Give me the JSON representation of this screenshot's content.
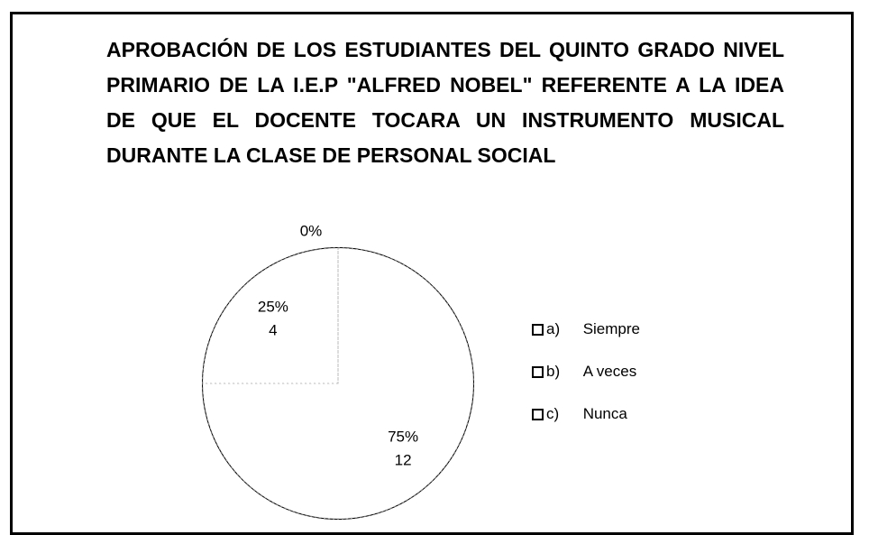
{
  "chart_data": {
    "type": "pie",
    "title": "APROBACIÓN DE LOS ESTUDIANTES DEL QUINTO GRADO NIVEL PRIMARIO DE LA I.E.P \"ALFRED NOBEL\" REFERENTE A LA IDEA DE QUE EL DOCENTE TOCARA UN INSTRUMENTO MUSICAL DURANTE LA CLASE DE PERSONAL SOCIAL",
    "categories": [
      "a)\tSiempre",
      "b)\tA veces",
      "c)\tNunca"
    ],
    "values": [
      75,
      25,
      0
    ],
    "value_labels": [
      "75%",
      "25%",
      "0%"
    ],
    "counts": [
      12,
      4,
      0
    ],
    "color": "#ffffff"
  }
}
